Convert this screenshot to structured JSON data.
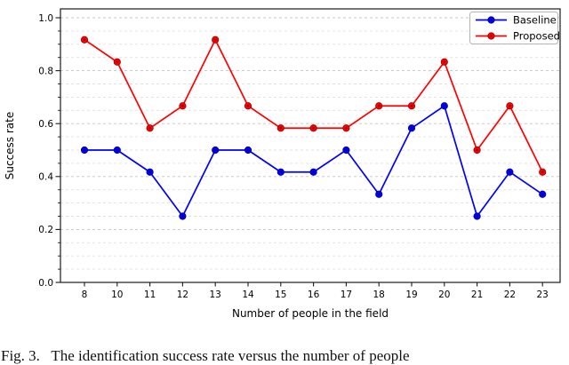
{
  "chart_data": {
    "type": "line",
    "title": "",
    "xlabel": "Number of people in the field",
    "ylabel": "Success rate",
    "categories": [
      "8",
      "10",
      "11",
      "12",
      "13",
      "14",
      "15",
      "16",
      "17",
      "18",
      "19",
      "20",
      "21",
      "22",
      "23"
    ],
    "ylim": [
      0.0,
      1.035
    ],
    "y_major_ticks": [
      "0.0",
      "0.2",
      "0.4",
      "0.6",
      "0.8",
      "1.0"
    ],
    "y_minor_step": 0.05,
    "grid": "horizontal-dashed",
    "legend_position": "upper-right",
    "series": [
      {
        "name": "Baseline",
        "color": "#0000ff",
        "marker_core_color": "#000099",
        "values": [
          0.5,
          0.5,
          0.417,
          0.25,
          0.5,
          0.5,
          0.417,
          0.417,
          0.5,
          0.333,
          0.583,
          0.667,
          0.25,
          0.417,
          0.333
        ]
      },
      {
        "name": "Proposed",
        "color": "#ff0000",
        "marker_core_color": "#990000",
        "values": [
          0.917,
          0.833,
          0.583,
          0.667,
          0.917,
          0.667,
          0.583,
          0.583,
          0.583,
          0.667,
          0.667,
          0.833,
          0.5,
          0.667,
          0.417
        ]
      }
    ],
    "colors": {
      "spine": "#1a1a1a",
      "grid_major": "#c4c4c4",
      "grid_minor": "#e0e0e0",
      "legend_border": "#b5b5b5",
      "background": "#ffffff"
    }
  },
  "caption": {
    "text": "Fig. 3.   The identification success rate versus the number of people"
  }
}
